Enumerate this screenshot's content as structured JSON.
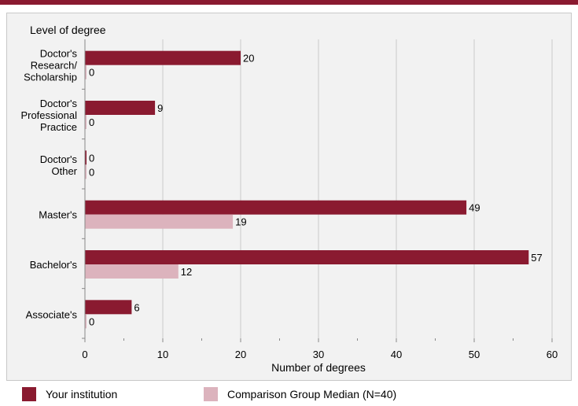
{
  "chart_data": {
    "type": "bar",
    "orientation": "horizontal",
    "ylabel": "Level of degree",
    "xlabel": "Number of degrees",
    "xlim": [
      0,
      60
    ],
    "xticks": [
      0,
      10,
      20,
      30,
      40,
      50,
      60
    ],
    "grid": true,
    "legend_placement": "bottom",
    "categories": [
      [
        "Doctor's",
        "Research/",
        "Scholarship"
      ],
      [
        "Doctor's",
        "Professional",
        "Practice"
      ],
      [
        "Doctor's",
        "Other"
      ],
      [
        "Master's"
      ],
      [
        "Bachelor's"
      ],
      [
        "Associate's"
      ]
    ],
    "series": [
      {
        "name": "Your institution",
        "values": [
          20,
          9,
          0,
          49,
          57,
          6
        ],
        "color": "#8a1a30"
      },
      {
        "name": "Comparison Group Median (N=40)",
        "values": [
          0,
          0,
          0,
          19,
          12,
          0
        ],
        "color": "#dcb3bd"
      }
    ]
  }
}
